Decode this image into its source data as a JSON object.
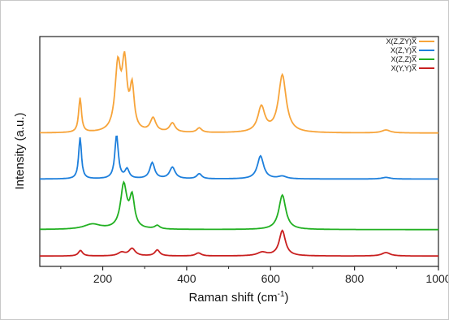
{
  "chart_data": {
    "type": "line",
    "xlabel": "Raman shift (cm",
    "xlabel_sup": "-1",
    "xlabel_end": ")",
    "ylabel": "Intensity (a.u.)",
    "xlim": [
      50,
      1000
    ],
    "ylim": [
      0,
      100
    ],
    "grid": false,
    "legend_position": "top-right",
    "x_ticks": [
      200,
      400,
      600,
      800,
      1000
    ],
    "series": [
      {
        "name": "X(Z,ZY)X̅",
        "color": "#f7a43a",
        "baseline": 58,
        "peaks": [
          [
            146,
            15,
            4
          ],
          [
            236,
            28,
            8
          ],
          [
            252,
            28,
            7
          ],
          [
            270,
            18,
            6
          ],
          [
            320,
            6,
            8
          ],
          [
            366,
            4,
            8
          ],
          [
            430,
            2,
            7
          ],
          [
            578,
            11,
            10
          ],
          [
            628,
            25,
            11
          ],
          [
            875,
            1.3,
            12
          ]
        ]
      },
      {
        "name": "X(Z,Y)X̅",
        "color": "#1d7fdc",
        "baseline": 38,
        "peaks": [
          [
            146,
            18,
            4
          ],
          [
            233,
            19,
            5
          ],
          [
            258,
            4,
            6
          ],
          [
            318,
            7,
            7
          ],
          [
            366,
            5,
            8
          ],
          [
            430,
            2.2,
            7
          ],
          [
            576,
            10,
            9
          ],
          [
            628,
            1.1,
            12
          ],
          [
            875,
            0.7,
            12
          ]
        ]
      },
      {
        "name": "X(Z,Z)X̅",
        "color": "#22b022",
        "baseline": 16,
        "peaks": [
          [
            175,
            2.2,
            24
          ],
          [
            250,
            19,
            9
          ],
          [
            270,
            13,
            7
          ],
          [
            330,
            1.5,
            7
          ],
          [
            628,
            15,
            10
          ]
        ]
      },
      {
        "name": "X(Y,Y)X̅",
        "color": "#c92020",
        "baseline": 4.5,
        "peaks": [
          [
            147,
            2.4,
            6
          ],
          [
            245,
            1.5,
            10
          ],
          [
            270,
            3.2,
            9
          ],
          [
            330,
            2.6,
            7
          ],
          [
            428,
            1.3,
            8
          ],
          [
            580,
            1.5,
            14
          ],
          [
            628,
            11,
            9
          ],
          [
            875,
            1.5,
            12
          ]
        ]
      }
    ]
  }
}
